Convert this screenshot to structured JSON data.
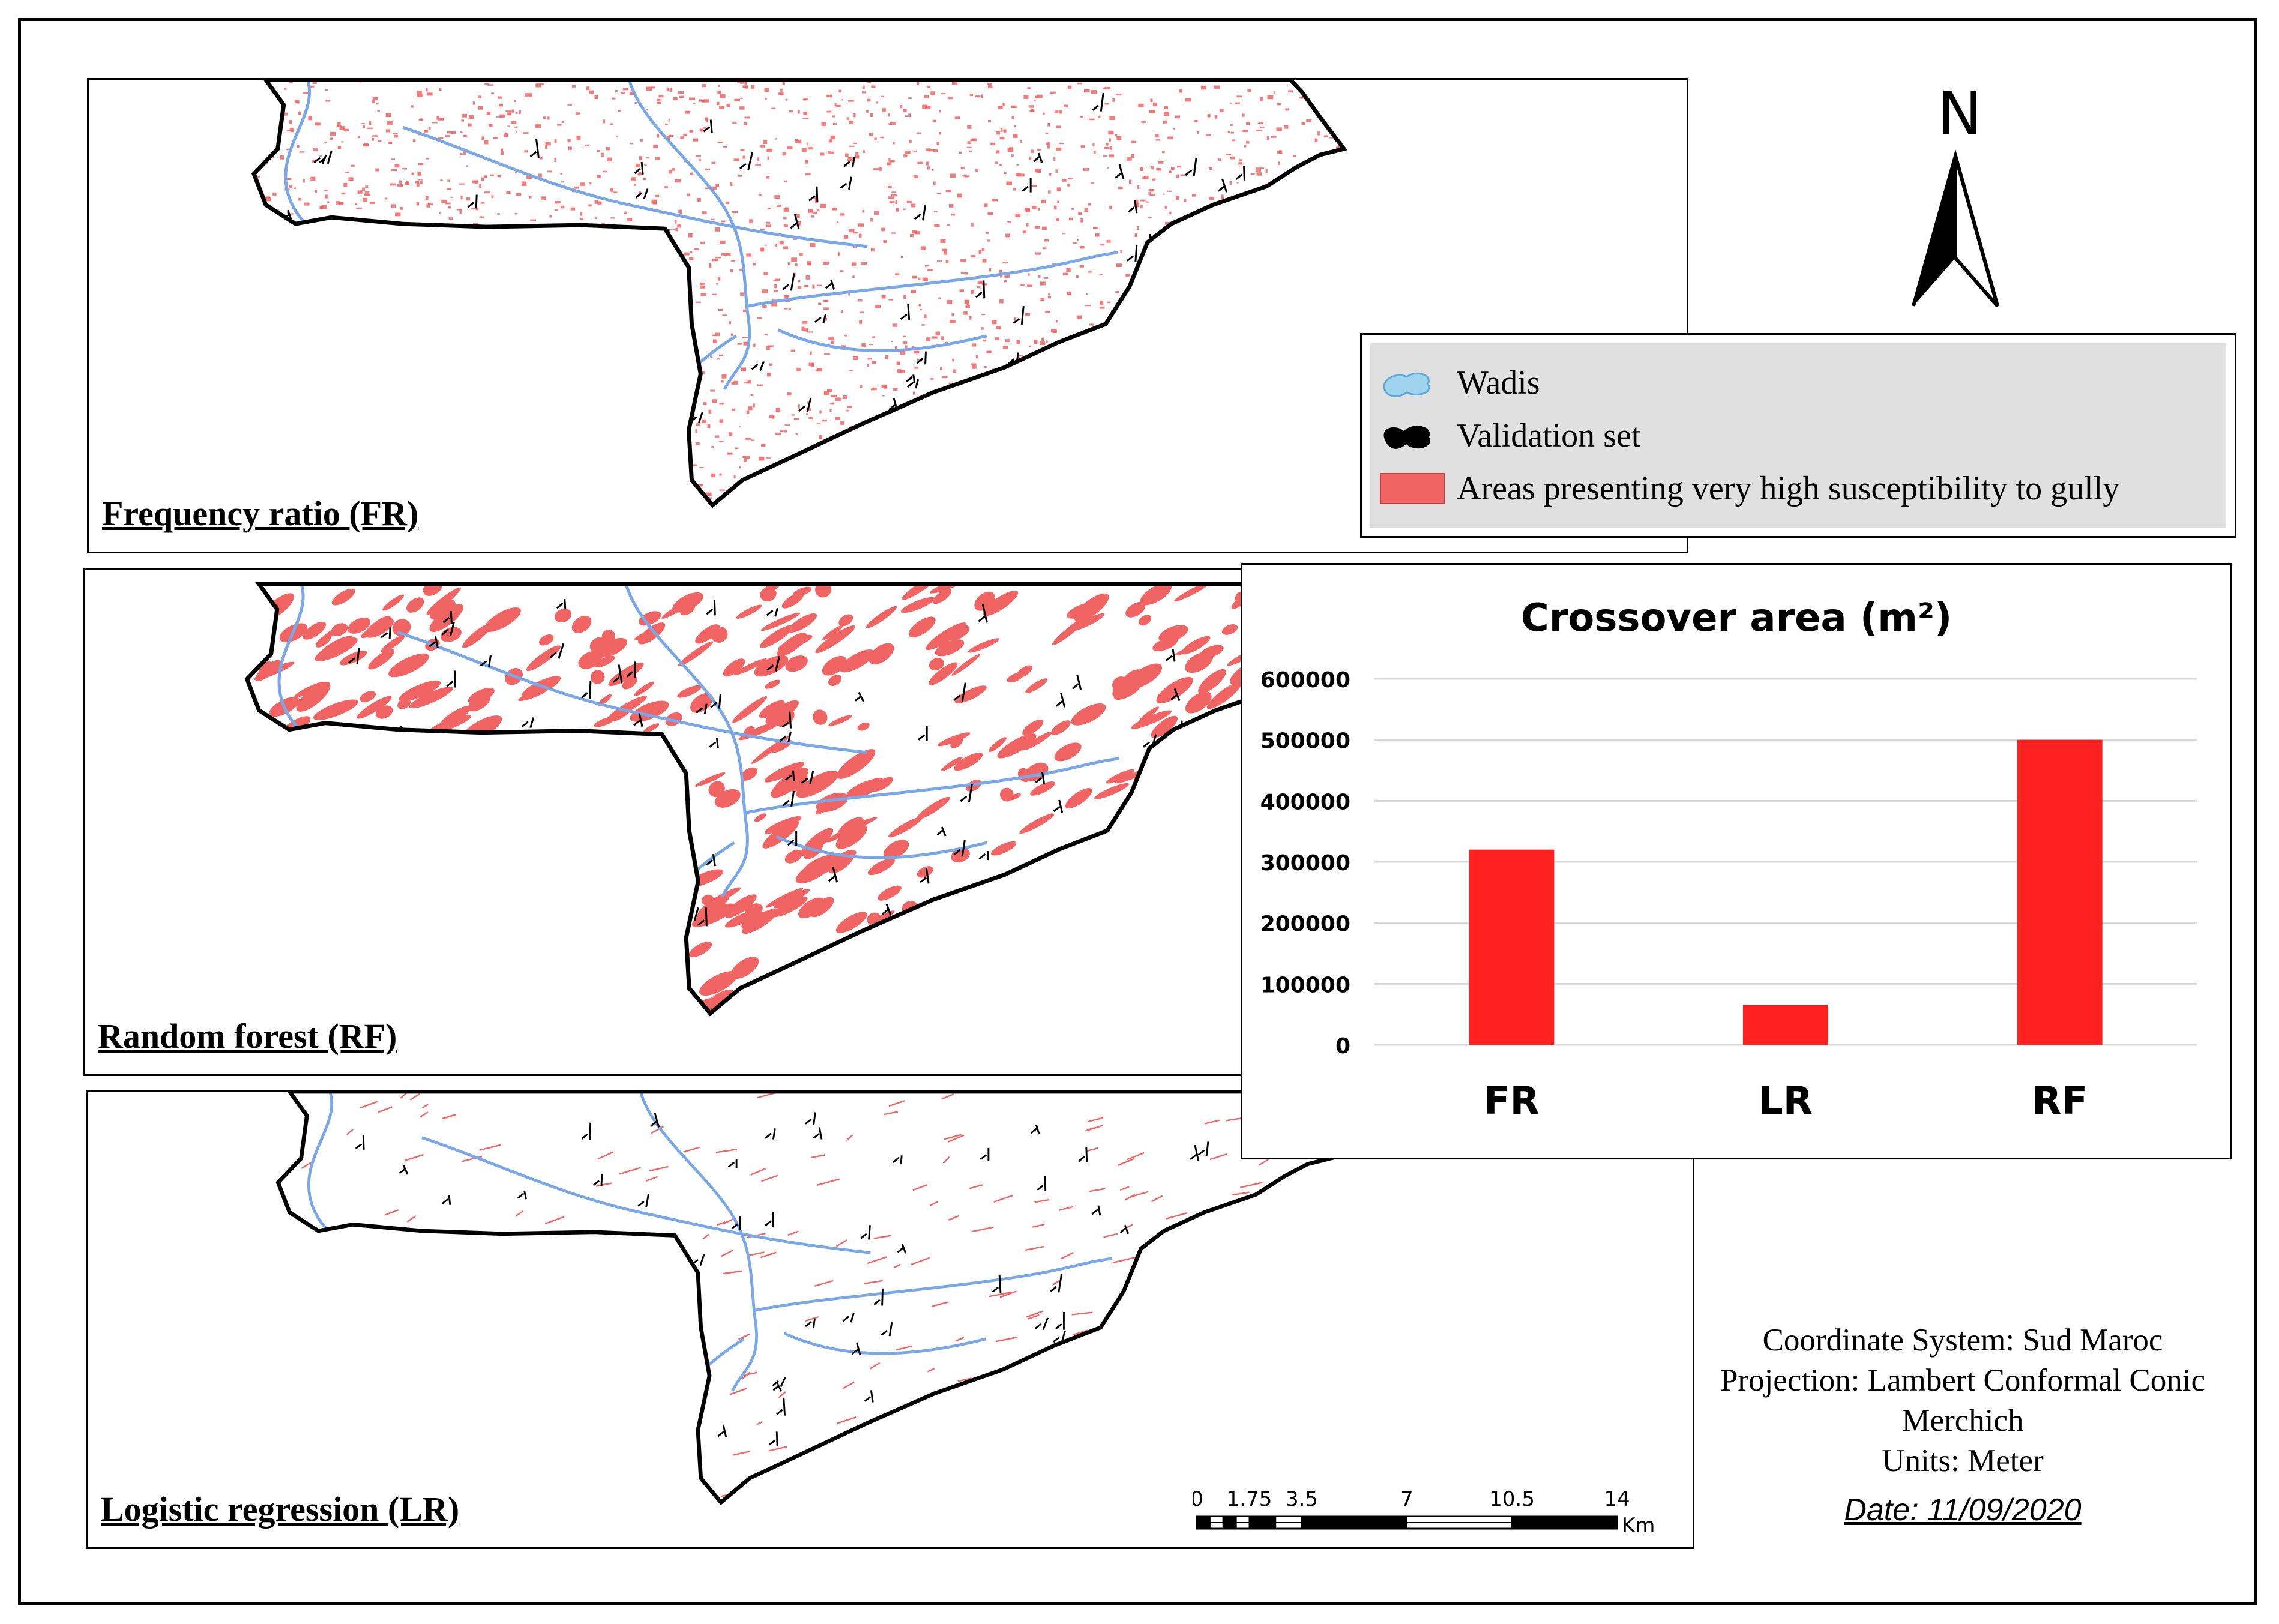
{
  "maps": {
    "fr": {
      "title": "Frequency ratio (FR)"
    },
    "rf": {
      "title": "Random forest (RF)"
    },
    "lr": {
      "title": "Logistic regression (LR)"
    }
  },
  "legend": {
    "items": [
      {
        "label": "Wadis",
        "icon": "wadi-symbol",
        "color": "#9fd3ee"
      },
      {
        "label": "Validation set",
        "icon": "gully-symbol",
        "color": "#000000"
      },
      {
        "label": "Areas presenting very high susceptibility to gully",
        "icon": "susceptibility-swatch",
        "color": "#f06464"
      }
    ]
  },
  "north_arrow": {
    "label": "N"
  },
  "scale_bar": {
    "ticks": [
      "0",
      "1.75",
      "3.5",
      "7",
      "10.5",
      "14"
    ],
    "tick_values": [
      0,
      1.75,
      3.5,
      7,
      10.5,
      14
    ],
    "unit": "Km"
  },
  "crs": {
    "line1": "Coordinate System: Sud Maroc",
    "line2": "Projection: Lambert Conformal Conic",
    "line3": "Merchich",
    "line4": "Units: Meter",
    "date": "Date: 11/09/2020"
  },
  "colors": {
    "susceptibility": "#f06464",
    "wadi": "#7aa7e6",
    "gully": "#000000",
    "bar": "#ff2020"
  },
  "chart_data": {
    "type": "bar",
    "title": "Crossover area (m²)",
    "categories": [
      "FR",
      "LR",
      "RF"
    ],
    "values": [
      320000,
      65000,
      500000
    ],
    "yticks": [
      0,
      100000,
      200000,
      300000,
      400000,
      500000,
      600000
    ],
    "ytick_labels": [
      "0",
      "100000",
      "200000",
      "300000",
      "400000",
      "500000",
      "600000"
    ],
    "ylim": [
      0,
      600000
    ],
    "grid": true,
    "xlabel": "",
    "ylabel": ""
  }
}
